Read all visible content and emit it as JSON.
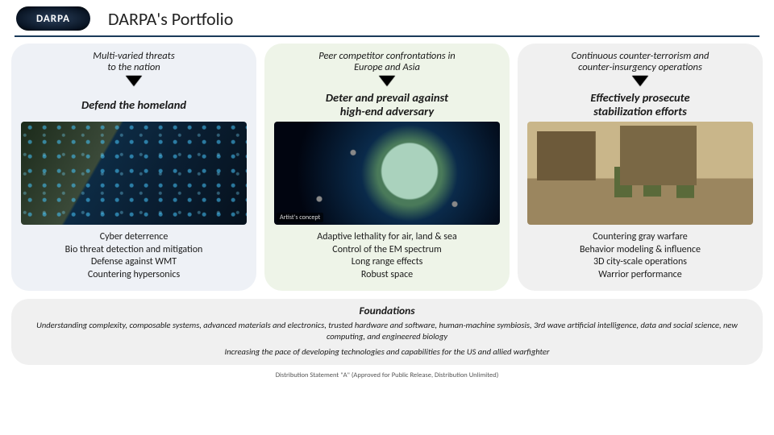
{
  "header": {
    "logo_text": "DARPA",
    "title": "DARPA's Portfolio"
  },
  "columns": [
    {
      "bg": "#eef1f6",
      "top": "Multi-varied threats\nto the nation",
      "heading": "Defend the homeland",
      "image_badge": "",
      "bullets": [
        "Cyber deterrence",
        "Bio threat detection and mitigation",
        "Defense against WMT",
        "Countering hypersonics"
      ]
    },
    {
      "bg": "#eef4e8",
      "top": "Peer competitor confrontations in\nEurope and Asia",
      "heading": "Deter and prevail against\nhigh-end adversary",
      "image_badge": "Artist's concept",
      "bullets": [
        "Adaptive lethality for air, land & sea",
        "Control of the EM spectrum",
        "Long range effects",
        "Robust space"
      ]
    },
    {
      "bg": "#f0f0f0",
      "top": "Continuous counter-terrorism and\ncounter-insurgency operations",
      "heading": "Effectively prosecute\nstabilization efforts",
      "image_badge": "",
      "bullets": [
        "Countering gray warfare",
        "Behavior modeling & influence",
        "3D city-scale operations",
        "Warrior performance"
      ]
    }
  ],
  "foundations": {
    "title": "Foundations",
    "body": "Understanding complexity, composable systems, advanced materials and electronics, trusted hardware and software, human-machine symbiosis, 3rd wave artificial intelligence, data and social science, new computing, and engineered biology",
    "body2": "Increasing the pace of developing technologies and capabilities for the US and allied warfighter"
  },
  "distribution": "Distribution Statement \"A\" (Approved for Public Release, Distribution Unlimited)",
  "style": {
    "rule_color": "#1a3a5a",
    "title_fontsize": 22,
    "top_label_fontsize": 12.5,
    "heading_fontsize": 14.5,
    "bullet_fontsize": 12,
    "foundations_bg": "#f0f0f0",
    "card_radius": 22
  }
}
